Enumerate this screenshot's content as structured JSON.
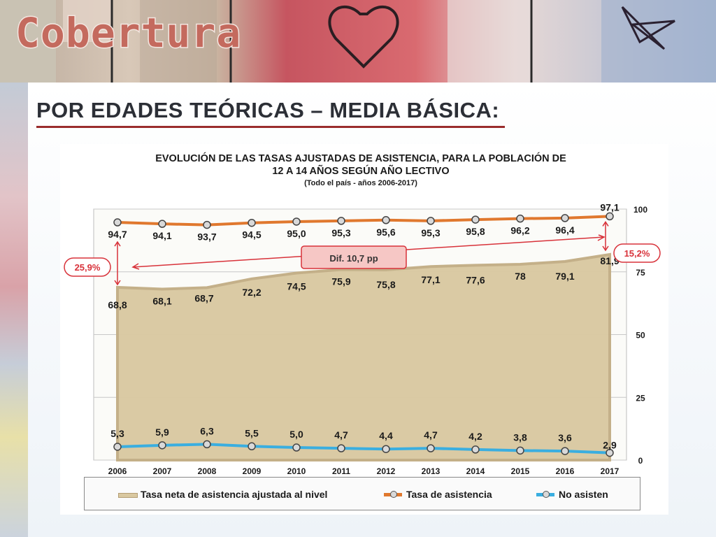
{
  "slide": {
    "title": "Cobertura",
    "section_heading": "POR EDADES TEÓRICAS – MEDIA BÁSICA:"
  },
  "colors": {
    "area_fill": "#d9c8a0",
    "area_stroke": "#c2ad84",
    "attendance_line": "#e0782e",
    "not_attending_line": "#3aaee0",
    "callout_red": "#d8323a",
    "heading_rule": "#9a2c2c"
  },
  "chart_data": {
    "type": "area",
    "title_line1": "EVOLUCIÓN DE LAS TASAS  AJUSTADAS  DE ASISTENCIA, PARA LA POBLACIÓN DE",
    "title_line2": "12 A 14 AÑOS SEGÚN AÑO LECTIVO",
    "subtitle": "(Todo el país  - años 2006-2017)",
    "x": [
      "2006",
      "2007",
      "2008",
      "2009",
      "2010",
      "2011",
      "2012",
      "2013",
      "2014",
      "2015",
      "2016",
      "2017"
    ],
    "ylim": [
      0,
      100
    ],
    "yticks": [
      0,
      25,
      50,
      75,
      100
    ],
    "y_axis_position": "right",
    "grid": true,
    "legend_position": "bottom",
    "series": [
      {
        "name": "Tasa neta de asistencia ajustada al nivel",
        "type": "area",
        "values": [
          68.8,
          68.1,
          68.7,
          72.2,
          74.5,
          75.9,
          75.8,
          77.1,
          77.6,
          78,
          79.1,
          81.9
        ],
        "labels": [
          "68,8",
          "68,1",
          "68,7",
          "72,2",
          "74,5",
          "75,9",
          "75,8",
          "77,1",
          "77,6",
          "78",
          "79,1",
          "81,9"
        ]
      },
      {
        "name": "Tasa de asistencia",
        "type": "line",
        "values": [
          94.7,
          94.1,
          93.7,
          94.5,
          95.0,
          95.3,
          95.6,
          95.3,
          95.8,
          96.2,
          96.4,
          97.1
        ],
        "labels": [
          "94,7",
          "94,1",
          "93,7",
          "94,5",
          "95,0",
          "95,3",
          "95,6",
          "95,3",
          "95,8",
          "96,2",
          "96,4",
          "97,1"
        ]
      },
      {
        "name": "No asisten",
        "type": "line",
        "values": [
          5.3,
          5.9,
          6.3,
          5.5,
          5.0,
          4.7,
          4.4,
          4.7,
          4.2,
          3.8,
          3.6,
          2.9
        ],
        "labels": [
          "5,3",
          "5,9",
          "6,3",
          "5,5",
          "5,0",
          "4,7",
          "4,4",
          "4,7",
          "4,2",
          "3,8",
          "3,6",
          "2,9"
        ]
      }
    ],
    "annotations": {
      "gap_2006": "25,9%",
      "gap_2017": "15,2%",
      "difference": "Dif. 10,7 pp"
    }
  }
}
